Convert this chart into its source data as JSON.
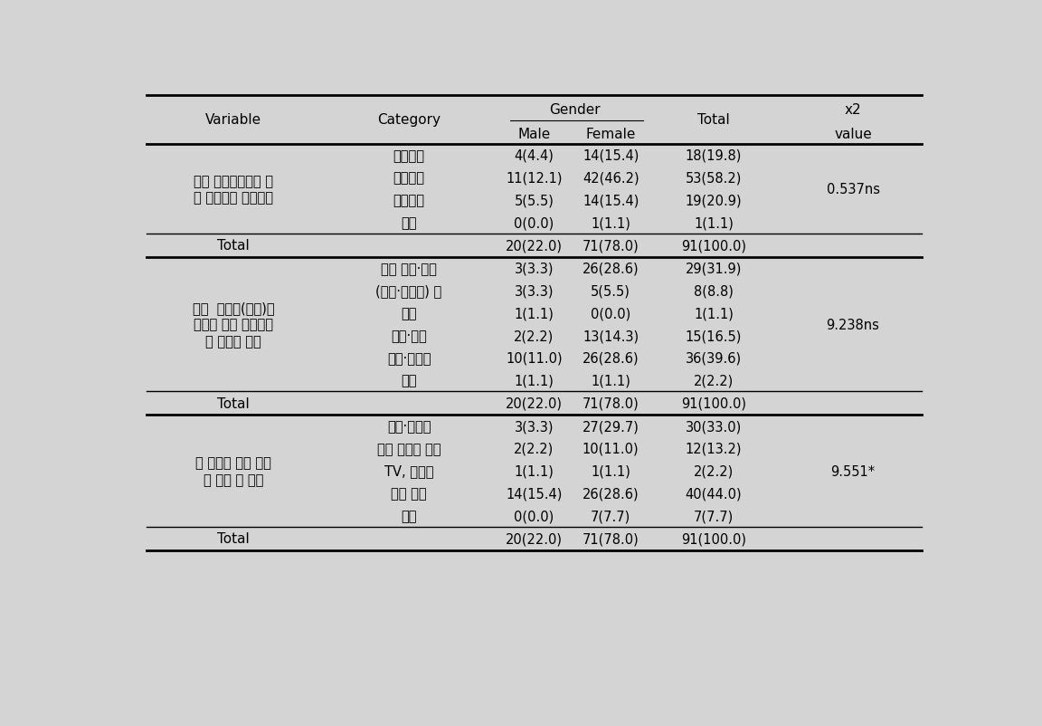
{
  "bg_color": "#d4d4d4",
  "sections": [
    {
      "variable_lines": [
        "농촌 체험마을에서 가",
        "장 선호하는 프로그램"
      ],
      "rows": [
        {
          "category": "농사체험",
          "male": "4(4.4)",
          "female": "14(15.4)",
          "total": "18(19.8)"
        },
        {
          "category": "음식체험",
          "male": "11(12.1)",
          "female": "42(46.2)",
          "total": "53(58.2)"
        },
        {
          "category": "공예체험",
          "male": "5(5.5)",
          "female": "14(15.4)",
          "total": "19(20.9)"
        },
        {
          "category": "기타",
          "male": "0(0.0)",
          "female": "1(1.1)",
          "total": "1(1.1)"
        }
      ],
      "chi2": "0.537ns",
      "total_male": "20(22.0)",
      "total_female": "71(78.0)",
      "total_total": "91(100.0)"
    },
    {
      "variable_lines": [
        "마을  특산품(오디)을",
        "활용한 체험 프로그램",
        "을 이용한 목적"
      ],
      "rows": [
        {
          "category": "자녀 체험·교육",
          "male": "3(3.3)",
          "female": "26(28.6)",
          "total": "29(31.9)"
        },
        {
          "category": "(오디·뽕잎의) 맛",
          "male": "3(3.3)",
          "female": "5(5.5)",
          "total": "8(8.8)"
        },
        {
          "category": "가격",
          "male": "1(1.1)",
          "female": "0(0.0)",
          "total": "1(1.1)"
        },
        {
          "category": "영양·효능",
          "male": "2(2.2)",
          "female": "13(14.3)",
          "total": "15(16.5)"
        },
        {
          "category": "재미·호기심",
          "male": "10(11.0)",
          "female": "26(28.6)",
          "total": "36(39.6)"
        },
        {
          "category": "기타",
          "male": "1(1.1)",
          "female": "1(1.1)",
          "total": "2(2.2)"
        }
      ],
      "chi2": "9.238ns",
      "total_male": "20(22.0)",
      "total_female": "71(78.0)",
      "total_total": "91(100.0)"
    },
    {
      "variable_lines": [
        "본 체험에 대한 정보",
        "를 알게 된 경로"
      ],
      "rows": [
        {
          "category": "홍보·리플렛",
          "male": "3(3.3)",
          "female": "27(29.7)",
          "total": "30(33.0)"
        },
        {
          "category": "주위 사람의 추천",
          "male": "2(2.2)",
          "female": "10(11.0)",
          "total": "12(13.2)"
        },
        {
          "category": "TV, 라디오",
          "male": "1(1.1)",
          "female": "1(1.1)",
          "total": "2(2.2)"
        },
        {
          "category": "축제 방문",
          "male": "14(15.4)",
          "female": "26(28.6)",
          "total": "40(44.0)"
        },
        {
          "category": "기타",
          "male": "0(0.0)",
          "female": "7(7.7)",
          "total": "7(7.7)"
        }
      ],
      "chi2": "9.551*",
      "total_male": "20(22.0)",
      "total_female": "71(78.0)",
      "total_total": "91(100.0)"
    }
  ]
}
